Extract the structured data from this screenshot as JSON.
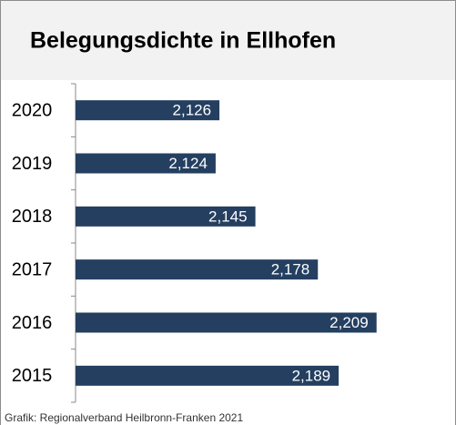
{
  "chart_data": {
    "type": "bar",
    "orientation": "horizontal",
    "title": "Belegungsdichte in Ellhofen",
    "categories": [
      "2020",
      "2019",
      "2018",
      "2017",
      "2016",
      "2015"
    ],
    "values": [
      2.126,
      2.124,
      2.145,
      2.178,
      2.209,
      2.189
    ],
    "value_labels": [
      "2,126",
      "2,124",
      "2,145",
      "2,178",
      "2,209",
      "2,189"
    ],
    "color": "#243f60",
    "xlim": [
      2.05,
      2.25
    ],
    "source": "Grafik: Regionalverband Heilbronn-Franken 2021"
  }
}
